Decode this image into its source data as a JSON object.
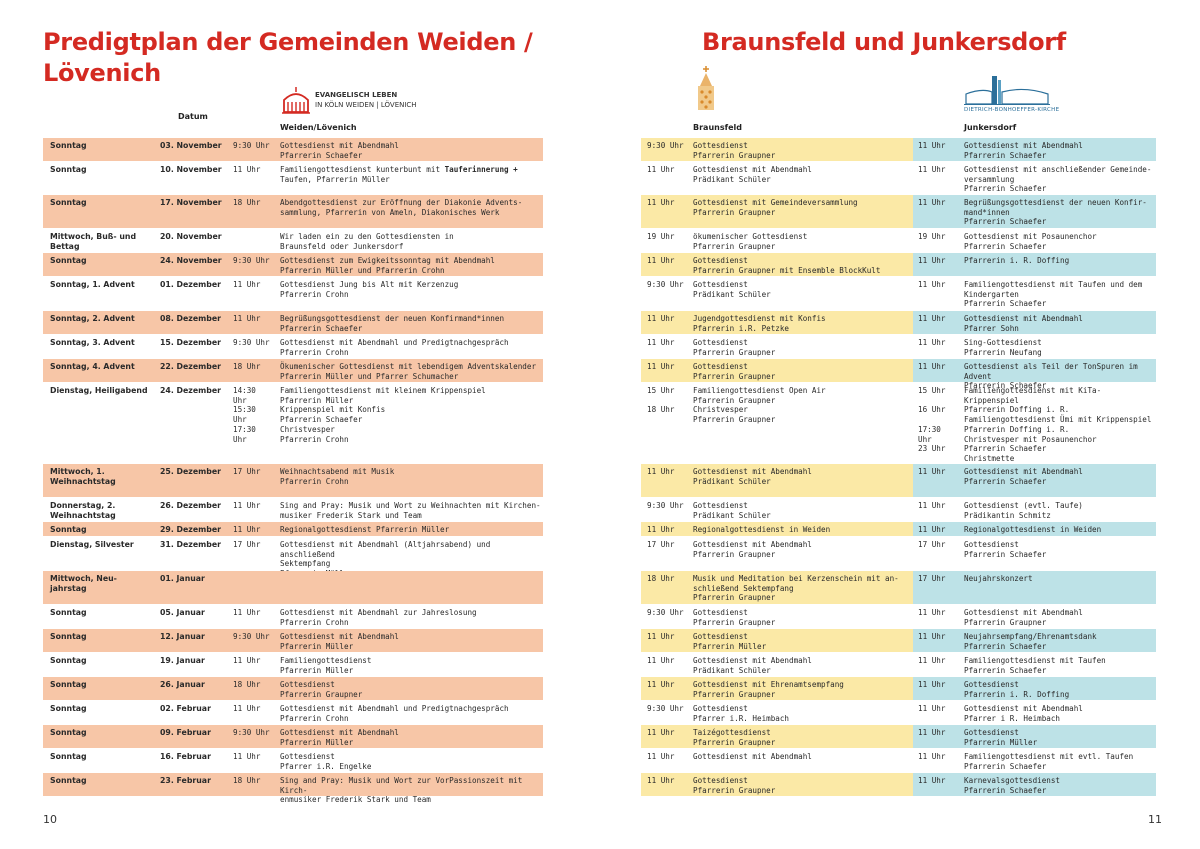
{
  "header": {
    "title_left": "Predigtplan der Gemeinden Weiden / Lövenich",
    "title_right": "Braunsfeld und Junkersdorf",
    "col_datum": "Datum",
    "col_weiden": "Weiden/Lövenich",
    "col_braunsfeld": "Braunsfeld",
    "col_junkersdorf": "Junkersdorf",
    "logo_ev_line1": "EVANGELISCH LEBEN",
    "logo_ev_line2": "IN KÖLN WEIDEN | LÖVENICH",
    "logo_dbk": "DIETRICH-BONHOEFFER-KIRCHE"
  },
  "footer": {
    "page_left": "10",
    "page_right": "11"
  },
  "colors": {
    "title": "#d42a22",
    "weiden_band": "#f7c6a7",
    "braunsfeld_band": "#fbe9a6",
    "junkersdorf_band": "#bde2e7"
  },
  "rows": [
    {
      "day": "Sonntag",
      "date": "03. November",
      "wt": "9:30 Uhr",
      "wd": "Gottesdienst mit Abendmahl\nPfarrerin Schaefer",
      "bt": "9:30 Uhr",
      "bd": "Gottesdienst\nPfarrerin Graupner",
      "jt": "11 Uhr",
      "jd": "Gottesdienst mit Abendmahl\nPfarrerin Schaefer"
    },
    {
      "day": "Sonntag",
      "date": "10. November",
      "wt": "11 Uhr",
      "wd": "Familiengottesdienst kunterbunt mit Tauferinnerung +\nTaufen, Pfarrerin Müller",
      "bt": "11 Uhr",
      "bd": "Gottesdienst mit Abendmahl\nPrädikant Schüler",
      "jt": "11 Uhr",
      "jd": "Gottesdienst mit anschließender Gemeinde-\nversammlung\nPfarrerin Schaefer"
    },
    {
      "day": "Sonntag",
      "date": "17. November",
      "wt": "18 Uhr",
      "wd": "Abendgottesdienst zur Eröffnung der Diakonie Advents-\nsammlung, Pfarrerin von Ameln, Diakonisches Werk",
      "bt": "11 Uhr",
      "bd": "Gottesdienst mit Gemeindeversammlung\nPfarrerin Graupner",
      "jt": "11 Uhr",
      "jd": "Begrüßungsgottesdienst der neuen Konfir-\nmand*innen\nPfarrerin Schaefer"
    },
    {
      "day": "Mittwoch, Buß- und\nBettag",
      "date": "20. November",
      "wt": "",
      "wd": "Wir laden ein zu den Gottesdiensten in\nBraunsfeld oder Junkersdorf",
      "bt": "19 Uhr",
      "bd": "ökumenischer Gottesdienst\nPfarrerin Graupner",
      "jt": "19 Uhr",
      "jd": "Gottesdienst mit Posaunenchor\nPfarrerin Schaefer"
    },
    {
      "day": "Sonntag",
      "date": "24. November",
      "wt": "9:30 Uhr",
      "wd": "Gottesdienst zum Ewigkeitssonntag mit Abendmahl\nPfarrerin Müller und Pfarrerin Crohn",
      "bt": "11 Uhr",
      "bd": "Gottesdienst\nPfarrerin Graupner mit Ensemble BlockKult",
      "jt": "11 Uhr",
      "jd": "Pfarrerin i. R. Doffing"
    },
    {
      "day": "Sonntag, 1. Advent",
      "date": "01. Dezember",
      "wt": "11 Uhr",
      "wd": "Gottesdienst Jung bis Alt mit Kerzenzug\nPfarrerin Crohn",
      "bt": "9:30 Uhr",
      "bd": "Gottesdienst\nPrädikant Schüler",
      "jt": "11 Uhr",
      "jd": "Familiengottesdienst mit Taufen und dem\nKindergarten\nPfarrerin Schaefer"
    },
    {
      "day": "Sonntag, 2. Advent",
      "date": "08. Dezember",
      "wt": "11 Uhr",
      "wd": "Begrüßungsgottesdienst der neuen Konfirmand*innen\nPfarrerin Schaefer",
      "bt": "11 Uhr",
      "bd": "Jugendgottesdienst mit Konfis\nPfarrerin i.R. Petzke",
      "jt": "11 Uhr",
      "jd": "Gottesdienst mit Abendmahl\nPfarrer Sohn"
    },
    {
      "day": "Sonntag, 3. Advent",
      "date": "15. Dezember",
      "wt": "9:30 Uhr",
      "wd": "Gottesdienst mit Abendmahl und Predigtnachgespräch\nPfarrerin Crohn",
      "bt": "11 Uhr",
      "bd": "Gottesdienst\nPfarrerin Graupner",
      "jt": "11 Uhr",
      "jd": "Sing-Gottesdienst\nPfarrerin Neufang"
    },
    {
      "day": "Sonntag, 4. Advent",
      "date": "22. Dezember",
      "wt": "18 Uhr",
      "wd": "Ökumenischer Gottesdienst mit lebendigem Adventskalender\nPfarrerin Müller und Pfarrer Schumacher",
      "bt": "11 Uhr",
      "bd": "Gottesdienst\nPfarrerin Graupner",
      "jt": "11 Uhr",
      "jd": "Gottesdienst als Teil der TonSpuren im Advent\nPfarrerin Schaefer"
    },
    {
      "day": "Dienstag, Heiligabend",
      "date": "24. Dezember",
      "wt": "14:30\nUhr\n15:30\nUhr\n17:30\nUhr",
      "wd": "Familiengottesdienst mit kleinem Krippenspiel\nPfarrerin Müller\nKrippenspiel mit Konfis\nPfarrerin Schaefer\nChristvesper\nPfarrerin Crohn",
      "bt": "15 Uhr\n\n18 Uhr",
      "bd": "Familiengottesdienst Open Air\nPfarrerin Graupner\nChristvesper\nPfarrerin Graupner",
      "jt": "15 Uhr\n\n16 Uhr\n\n17:30\nUhr\n23 Uhr",
      "jd": "Familiengottesdienst mit KiTa-Krippenspiel\nPfarrerin Doffing i. R.\nFamiliengottesdienst Ümi mit Krippenspiel\nPfarrerin Doffing i. R.\nChristvesper mit Posaunenchor\nPfarrerin Schaefer\nChristmette\nPfarrerin Schaefer"
    },
    {
      "day": "Mittwoch, 1.\nWeihnachtstag",
      "date": "25. Dezember",
      "wt": "17 Uhr",
      "wd": "Weihnachtsabend mit Musik\nPfarrerin Crohn",
      "bt": "11 Uhr",
      "bd": "Gottesdienst mit Abendmahl\nPrädikant Schüler",
      "jt": "11 Uhr",
      "jd": "Gottesdienst mit Abendmahl\nPfarrerin Schaefer"
    },
    {
      "day": "Donnerstag, 2.\nWeihnachtstag",
      "date": "26. Dezember",
      "wt": "11 Uhr",
      "wd": "Sing and Pray: Musik und Wort zu Weihnachten mit Kirchen-\nmusiker Frederik Stark und Team",
      "bt": "9:30 Uhr",
      "bd": "Gottesdienst\nPrädikant Schüler",
      "jt": "11 Uhr",
      "jd": "Gottesdienst (evtl. Taufe)\nPrädikantin Schmitz"
    },
    {
      "day": "Sonntag",
      "date": "29. Dezember",
      "wt": "11 Uhr",
      "wd": "Regionalgottesdienst Pfarrerin Müller",
      "bt": "11 Uhr",
      "bd": "Regionalgottesdienst in Weiden",
      "jt": "11 Uhr",
      "jd": "Regionalgottesdienst in Weiden"
    },
    {
      "day": "Dienstag, Silvester",
      "date": "31. Dezember",
      "wt": "17 Uhr",
      "wd": "Gottesdienst mit Abendmahl (Altjahrsabend) und anschließend\nSektempfang\nPfarrerin Müller",
      "bt": "17 Uhr",
      "bd": "Gottesdienst mit Abendmahl\nPfarrerin Graupner",
      "jt": "17 Uhr",
      "jd": "Gottesdienst\nPfarrerin Schaefer"
    },
    {
      "day": "Mittwoch, Neu-\njahrstag",
      "date": "01. Januar",
      "wt": "",
      "wd": "",
      "bt": "18 Uhr",
      "bd": "Musik und Meditation bei Kerzenschein mit an-\nschließend Sektempfang\nPfarrerin Graupner",
      "jt": "17 Uhr",
      "jd": "Neujahrskonzert"
    },
    {
      "day": "Sonntag",
      "date": "05. Januar",
      "wt": "11 Uhr",
      "wd": "Gottesdienst mit Abendmahl zur Jahreslosung\nPfarrerin Crohn",
      "bt": "9:30 Uhr",
      "bd": "Gottesdienst\nPfarrerin Graupner",
      "jt": "11 Uhr",
      "jd": "Gottesdienst mit Abendmahl\nPfarrerin Graupner"
    },
    {
      "day": "Sonntag",
      "date": "12. Januar",
      "wt": "9:30 Uhr",
      "wd": "Gottesdienst mit Abendmahl\nPfarrerin Müller",
      "bt": "11 Uhr",
      "bd": "Gottesdienst\nPfarrerin Müller",
      "jt": "11 Uhr",
      "jd": "Neujahrsempfang/Ehrenamtsdank\nPfarrerin Schaefer"
    },
    {
      "day": "Sonntag",
      "date": "19. Januar",
      "wt": "11 Uhr",
      "wd": "Familiengottesdienst\nPfarrerin Müller",
      "bt": "11 Uhr",
      "bd": "Gottesdienst mit Abendmahl\nPrädikant Schüler",
      "jt": "11 Uhr",
      "jd": "Familiengottesdienst mit Taufen\nPfarrerin Schaefer"
    },
    {
      "day": "Sonntag",
      "date": "26. Januar",
      "wt": "18 Uhr",
      "wd": "Gottesdienst\nPfarrerin Graupner",
      "bt": "11 Uhr",
      "bd": "Gottesdienst mit Ehrenamtsempfang\nPfarrerin Graupner",
      "jt": "11 Uhr",
      "jd": "Gottesdienst\nPfarrerin i. R. Doffing"
    },
    {
      "day": "Sonntag",
      "date": "02. Februar",
      "wt": "11 Uhr",
      "wd": "Gottesdienst mit Abendmahl und Predigtnachgespräch\nPfarrerin Crohn",
      "bt": "9:30 Uhr",
      "bd": "Gottesdienst\nPfarrer i.R. Heimbach",
      "jt": "11 Uhr",
      "jd": "Gottesdienst mit Abendmahl\nPfarrer i R. Heimbach"
    },
    {
      "day": "Sonntag",
      "date": "09. Februar",
      "wt": "9:30 Uhr",
      "wd": "Gottesdienst mit Abendmahl\nPfarrerin Müller",
      "bt": "11 Uhr",
      "bd": "Taizégottesdienst\nPfarrerin Graupner",
      "jt": "11 Uhr",
      "jd": "Gottesdienst\nPfarrerin Müller"
    },
    {
      "day": "Sonntag",
      "date": "16. Februar",
      "wt": "11 Uhr",
      "wd": "Gottesdienst\nPfarrer i.R. Engelke",
      "bt": "11 Uhr",
      "bd": "Gottesdienst mit Abendmahl",
      "jt": "11 Uhr",
      "jd": "Familiengottesdienst mit evtl. Taufen\nPfarrerin Schaefer"
    },
    {
      "day": "Sonntag",
      "date": "23. Februar",
      "wt": "18 Uhr",
      "wd": "Sing and Pray: Musik und Wort zur VorPassionszeit mit Kirch-\nenmusiker Frederik Stark und Team",
      "bt": "11 Uhr",
      "bd": "Gottesdienst\nPfarrerin Graupner",
      "jt": "11 Uhr",
      "jd": "Karnevalsgottesdienst\nPfarrerin Schaefer"
    }
  ]
}
